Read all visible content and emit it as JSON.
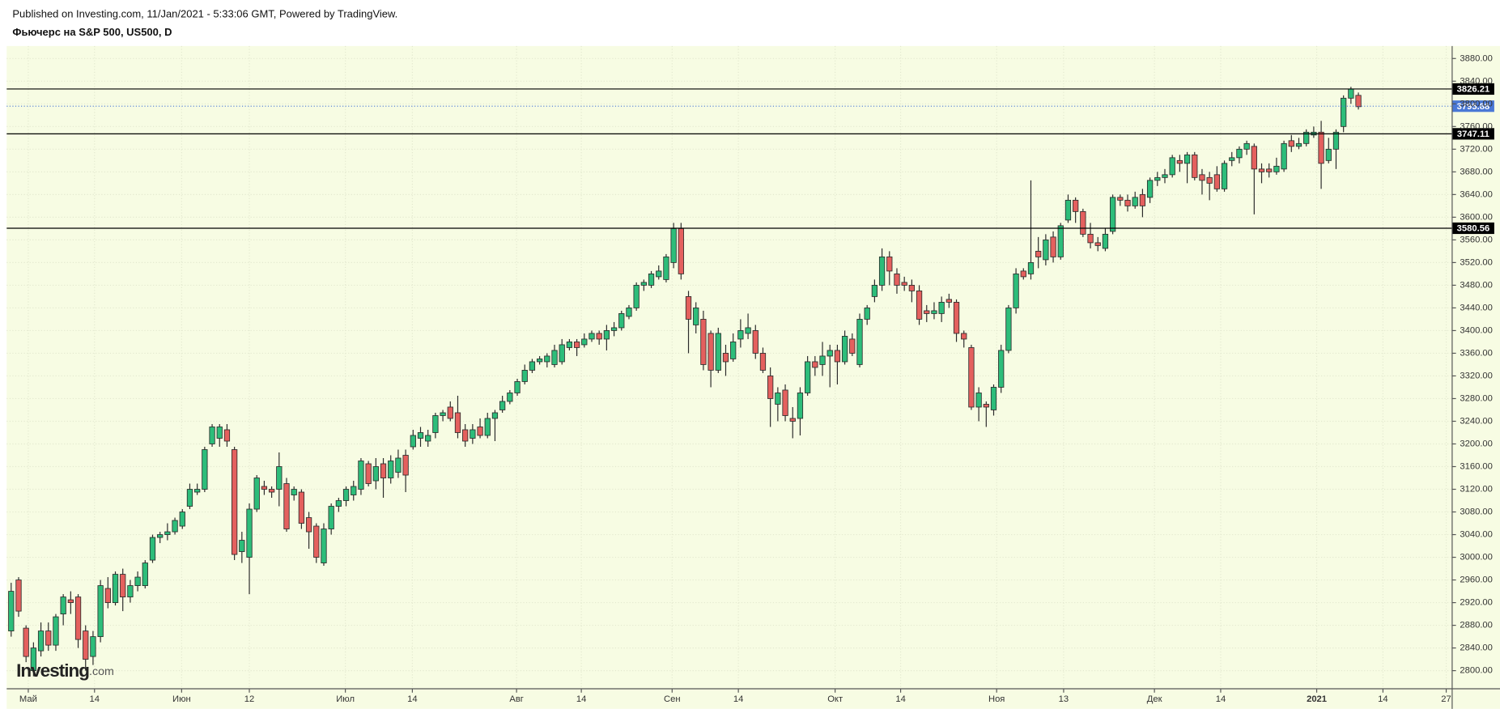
{
  "chart_data": {
    "type": "candlestick",
    "subtitle": "Published on Investing.com, 11/Jan/2021 - 5:33:06 GMT, Powered by TradingView.",
    "title": "Фьючерс на S&P 500, US500, D",
    "logo": {
      "main": "Investing",
      "suffix": ".com"
    },
    "up_color": "#2dbd7a",
    "down_color": "#e4605e",
    "level_color": "#000000",
    "last_color": "#4a78d6",
    "grid": true,
    "xlim": [
      -0.6,
      193.6
    ],
    "xticks": [
      {
        "value": 2.3,
        "label": "Май"
      },
      {
        "value": 11.2,
        "label": "14"
      },
      {
        "value": 22.9,
        "label": "Июн"
      },
      {
        "value": 32.0,
        "label": "12"
      },
      {
        "value": 44.9,
        "label": "Июл"
      },
      {
        "value": 53.9,
        "label": "14"
      },
      {
        "value": 67.9,
        "label": "Авг"
      },
      {
        "value": 76.6,
        "label": "14"
      },
      {
        "value": 88.8,
        "label": "Сен"
      },
      {
        "value": 97.7,
        "label": "14"
      },
      {
        "value": 110.7,
        "label": "Окт"
      },
      {
        "value": 119.5,
        "label": "14"
      },
      {
        "value": 132.4,
        "label": "Ноя"
      },
      {
        "value": 141.4,
        "label": "13"
      },
      {
        "value": 153.6,
        "label": "Дек"
      },
      {
        "value": 162.5,
        "label": "14"
      },
      {
        "value": 175.4,
        "label": "2021"
      },
      {
        "value": 184.3,
        "label": "14"
      },
      {
        "value": 192.8,
        "label": "27"
      }
    ],
    "ylim": [
      2768,
      3902
    ],
    "yticks": [
      {
        "value": 2800,
        "label": "2800.00"
      },
      {
        "value": 2840,
        "label": "2840.00"
      },
      {
        "value": 2880,
        "label": "2880.00"
      },
      {
        "value": 2920,
        "label": "2920.00"
      },
      {
        "value": 2960,
        "label": "2960.00"
      },
      {
        "value": 3000,
        "label": "3000.00"
      },
      {
        "value": 3040,
        "label": "3040.00"
      },
      {
        "value": 3080,
        "label": "3080.00"
      },
      {
        "value": 3120,
        "label": "3120.00"
      },
      {
        "value": 3160,
        "label": "3160.00"
      },
      {
        "value": 3200,
        "label": "3200.00"
      },
      {
        "value": 3240,
        "label": "3240.00"
      },
      {
        "value": 3280,
        "label": "3280.00"
      },
      {
        "value": 3320,
        "label": "3320.00"
      },
      {
        "value": 3360,
        "label": "3360.00"
      },
      {
        "value": 3400,
        "label": "3400.00"
      },
      {
        "value": 3440,
        "label": "3440.00"
      },
      {
        "value": 3480,
        "label": "3480.00"
      },
      {
        "value": 3520,
        "label": "3520.00"
      },
      {
        "value": 3560,
        "label": "3560.00"
      },
      {
        "value": 3600,
        "label": "3600.00"
      },
      {
        "value": 3640,
        "label": "3640.00"
      },
      {
        "value": 3680,
        "label": "3680.00"
      },
      {
        "value": 3720,
        "label": "3720.00"
      },
      {
        "value": 3760,
        "label": "3760.00"
      },
      {
        "value": 3800,
        "label": "3800.00"
      },
      {
        "value": 3840,
        "label": "3840.00"
      },
      {
        "value": 3880,
        "label": "3880.00"
      }
    ],
    "levels": [
      3826.21,
      3747.11,
      3580.56
    ],
    "last_price": 3795.88,
    "open": [
      2870,
      2960,
      2875,
      2800,
      2835,
      2870,
      2845,
      2900,
      2925,
      2930,
      2870,
      2825,
      2860,
      2945,
      2920,
      2970,
      2930,
      2950,
      2950,
      2995,
      3035,
      3040,
      3045,
      3055,
      3090,
      3115,
      3120,
      3200,
      3210,
      3225,
      3190,
      3010,
      3000,
      3085,
      3125,
      3120,
      3120,
      3130,
      3110,
      3115,
      3070,
      3055,
      2990,
      3050,
      3090,
      3100,
      3110,
      3120,
      3165,
      3135,
      3165,
      3140,
      3150,
      3180,
      3195,
      3210,
      3205,
      3220,
      3250,
      3265,
      3255,
      3225,
      3210,
      3230,
      3215,
      3245,
      3260,
      3275,
      3290,
      3310,
      3330,
      3345,
      3345,
      3340,
      3345,
      3370,
      3380,
      3375,
      3385,
      3395,
      3385,
      3400,
      3405,
      3425,
      3440,
      3480,
      3480,
      3495,
      3490,
      3520,
      3580,
      3460,
      3410,
      3420,
      3395,
      3330,
      3360,
      3350,
      3385,
      3395,
      3400,
      3360,
      3320,
      3270,
      3295,
      3245,
      3245,
      3290,
      3345,
      3340,
      3355,
      3365,
      3345,
      3385,
      3340,
      3420,
      3460,
      3480,
      3530,
      3500,
      3485,
      3480,
      3470,
      3435,
      3430,
      3430,
      3455,
      3450,
      3395,
      3370,
      3265,
      3270,
      3260,
      3300,
      3365,
      3440,
      3505,
      3500,
      3540,
      3525,
      3565,
      3530,
      3595,
      3630,
      3610,
      3570,
      3555,
      3545,
      3575,
      3635,
      3630,
      3620,
      3640,
      3635,
      3665,
      3670,
      3675,
      3700,
      3695,
      3710,
      3675,
      3670,
      3675,
      3650,
      3700,
      3705,
      3720,
      3725,
      3685,
      3685,
      3680,
      3685,
      3735,
      3725,
      3730,
      3745,
      3750,
      3700,
      3720,
      3760,
      3810,
      3815
    ],
    "high": [
      2955,
      2965,
      2880,
      2850,
      2885,
      2885,
      2900,
      2935,
      2940,
      2935,
      2880,
      2870,
      2960,
      2965,
      2975,
      2980,
      2960,
      2975,
      2995,
      3040,
      3045,
      3060,
      3070,
      3085,
      3130,
      3130,
      3195,
      3235,
      3235,
      3235,
      3195,
      3045,
      3095,
      3145,
      3135,
      3125,
      3185,
      3140,
      3125,
      3120,
      3080,
      3060,
      3060,
      3095,
      3105,
      3125,
      3135,
      3175,
      3170,
      3175,
      3175,
      3180,
      3190,
      3190,
      3225,
      3230,
      3225,
      3255,
      3260,
      3275,
      3285,
      3235,
      3235,
      3245,
      3255,
      3260,
      3285,
      3295,
      3315,
      3340,
      3350,
      3355,
      3360,
      3375,
      3385,
      3385,
      3385,
      3395,
      3400,
      3400,
      3410,
      3415,
      3435,
      3445,
      3485,
      3490,
      3505,
      3515,
      3535,
      3590,
      3590,
      3470,
      3450,
      3435,
      3400,
      3405,
      3375,
      3395,
      3420,
      3430,
      3410,
      3370,
      3335,
      3300,
      3305,
      3265,
      3300,
      3355,
      3355,
      3380,
      3375,
      3375,
      3400,
      3395,
      3430,
      3445,
      3490,
      3545,
      3540,
      3510,
      3495,
      3490,
      3480,
      3445,
      3450,
      3460,
      3465,
      3455,
      3400,
      3375,
      3300,
      3275,
      3305,
      3375,
      3445,
      3510,
      3510,
      3665,
      3565,
      3570,
      3575,
      3590,
      3640,
      3635,
      3615,
      3590,
      3565,
      3580,
      3640,
      3640,
      3640,
      3645,
      3650,
      3670,
      3680,
      3685,
      3710,
      3710,
      3715,
      3715,
      3685,
      3680,
      3690,
      3700,
      3715,
      3725,
      3735,
      3730,
      3695,
      3695,
      3705,
      3735,
      3745,
      3740,
      3755,
      3760,
      3770,
      3740,
      3755,
      3815,
      3830,
      3820
    ],
    "low": [
      2860,
      2895,
      2815,
      2790,
      2825,
      2835,
      2835,
      2880,
      2900,
      2840,
      2800,
      2810,
      2850,
      2910,
      2915,
      2905,
      2920,
      2940,
      2945,
      2990,
      3025,
      3030,
      3040,
      3050,
      3085,
      3110,
      3115,
      3195,
      3195,
      3195,
      2995,
      2990,
      2935,
      3080,
      3110,
      3105,
      3090,
      3045,
      3100,
      3050,
      3015,
      2990,
      2985,
      3040,
      3080,
      3090,
      3100,
      3110,
      3125,
      3120,
      3105,
      3130,
      3140,
      3115,
      3190,
      3195,
      3195,
      3210,
      3240,
      3240,
      3210,
      3195,
      3200,
      3210,
      3210,
      3205,
      3255,
      3270,
      3285,
      3305,
      3325,
      3340,
      3335,
      3335,
      3340,
      3365,
      3355,
      3370,
      3380,
      3375,
      3365,
      3390,
      3400,
      3420,
      3435,
      3470,
      3475,
      3490,
      3485,
      3510,
      3490,
      3360,
      3395,
      3330,
      3300,
      3325,
      3320,
      3345,
      3370,
      3385,
      3350,
      3325,
      3230,
      3240,
      3240,
      3210,
      3215,
      3285,
      3320,
      3320,
      3300,
      3305,
      3340,
      3355,
      3335,
      3410,
      3450,
      3470,
      3480,
      3465,
      3470,
      3450,
      3410,
      3415,
      3420,
      3415,
      3440,
      3380,
      3370,
      3260,
      3240,
      3230,
      3250,
      3290,
      3360,
      3430,
      3490,
      3490,
      3510,
      3515,
      3520,
      3525,
      3590,
      3590,
      3565,
      3545,
      3540,
      3540,
      3570,
      3620,
      3610,
      3615,
      3600,
      3625,
      3655,
      3660,
      3670,
      3680,
      3660,
      3665,
      3640,
      3630,
      3645,
      3645,
      3690,
      3695,
      3710,
      3605,
      3660,
      3670,
      3675,
      3680,
      3715,
      3720,
      3725,
      3740,
      3650,
      3695,
      3685,
      3750,
      3800,
      3790
    ],
    "close": [
      2940,
      2905,
      2825,
      2840,
      2870,
      2845,
      2895,
      2930,
      2920,
      2855,
      2820,
      2860,
      2950,
      2920,
      2970,
      2930,
      2950,
      2965,
      2990,
      3035,
      3040,
      3045,
      3065,
      3080,
      3120,
      3120,
      3190,
      3230,
      3230,
      3205,
      3005,
      3030,
      3085,
      3140,
      3120,
      3115,
      3160,
      3050,
      3120,
      3060,
      3045,
      3000,
      3050,
      3090,
      3100,
      3120,
      3125,
      3170,
      3130,
      3160,
      3140,
      3170,
      3175,
      3145,
      3215,
      3220,
      3215,
      3250,
      3255,
      3245,
      3220,
      3205,
      3225,
      3215,
      3245,
      3255,
      3275,
      3290,
      3310,
      3330,
      3345,
      3350,
      3355,
      3365,
      3375,
      3380,
      3370,
      3385,
      3395,
      3385,
      3400,
      3405,
      3430,
      3440,
      3480,
      3485,
      3500,
      3505,
      3530,
      3580,
      3500,
      3420,
      3440,
      3340,
      3330,
      3395,
      3345,
      3380,
      3400,
      3405,
      3360,
      3330,
      3280,
      3290,
      3250,
      3240,
      3290,
      3345,
      3335,
      3355,
      3365,
      3345,
      3390,
      3360,
      3420,
      3440,
      3480,
      3530,
      3505,
      3480,
      3480,
      3470,
      3420,
      3430,
      3435,
      3450,
      3450,
      3395,
      3385,
      3265,
      3290,
      3265,
      3300,
      3365,
      3440,
      3500,
      3495,
      3520,
      3530,
      3560,
      3530,
      3585,
      3630,
      3610,
      3570,
      3555,
      3550,
      3570,
      3635,
      3630,
      3620,
      3635,
      3620,
      3665,
      3670,
      3675,
      3705,
      3695,
      3710,
      3670,
      3665,
      3660,
      3650,
      3695,
      3705,
      3720,
      3730,
      3685,
      3680,
      3680,
      3690,
      3730,
      3725,
      3730,
      3750,
      3750,
      3695,
      3720,
      3750,
      3810,
      3826,
      3795
    ]
  }
}
